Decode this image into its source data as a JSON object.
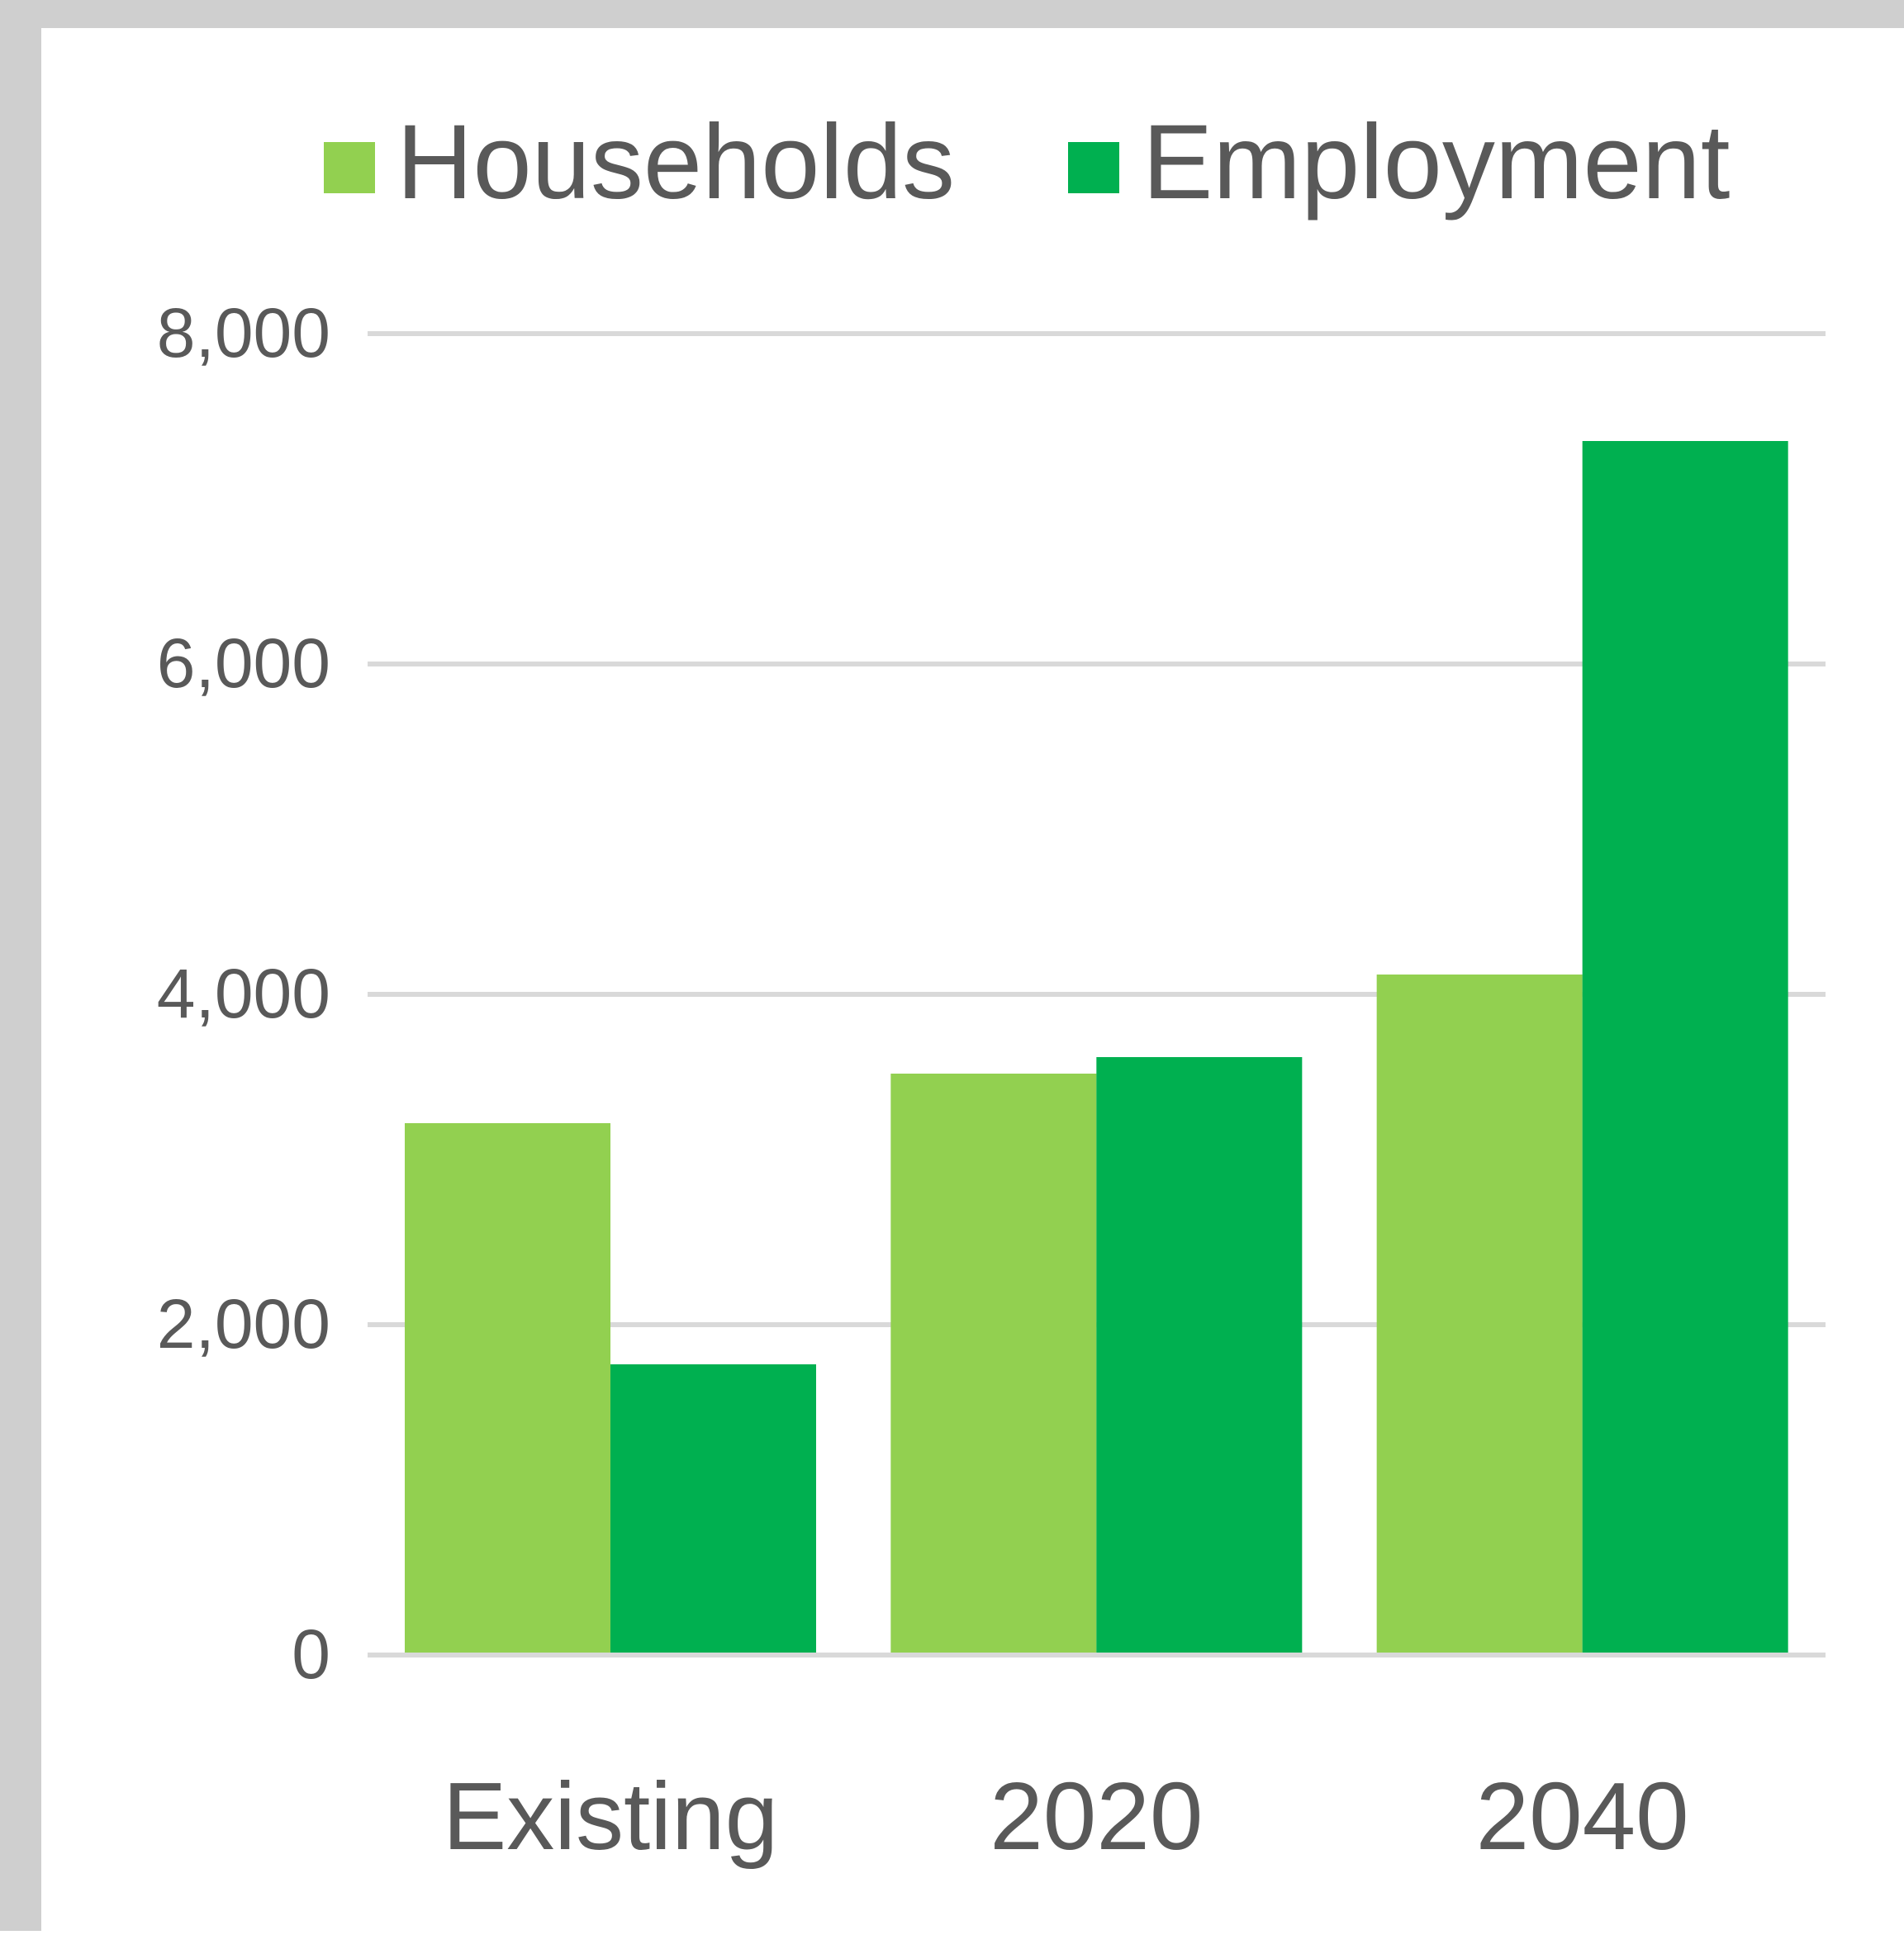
{
  "chart_data": {
    "type": "bar",
    "categories": [
      "Existing",
      "2020",
      "2040"
    ],
    "series": [
      {
        "name": "Households",
        "values": [
          3220,
          3520,
          4120
        ],
        "color": "#92d050"
      },
      {
        "name": "Employment",
        "values": [
          1760,
          3620,
          7350
        ],
        "color": "#00b050"
      }
    ],
    "y_ticks": [
      "0",
      "2,000",
      "4,000",
      "6,000",
      "8,000"
    ],
    "y_tick_values": [
      0,
      2000,
      4000,
      6000,
      8000
    ],
    "ylim": [
      0,
      8000
    ],
    "grid": true,
    "legend_position": "top",
    "colors": {
      "gridline": "#d9d9d9",
      "text": "#595959"
    }
  }
}
